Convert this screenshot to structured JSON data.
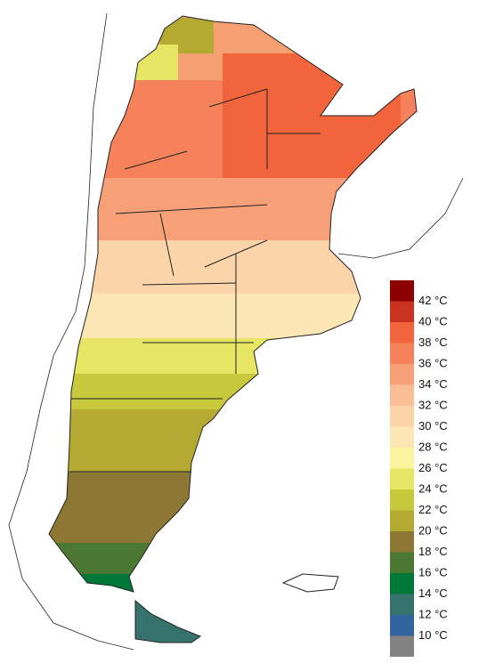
{
  "legend": {
    "colors": [
      "#8b0000",
      "#c8321e",
      "#f2643c",
      "#f5825a",
      "#f7a078",
      "#f9be96",
      "#fbd4aa",
      "#fce6b4",
      "#fbf5a0",
      "#e6e664",
      "#c8c83c",
      "#b4aa32",
      "#8c7832",
      "#4b7832",
      "#007837",
      "#37736e",
      "#3264a0",
      "#828282"
    ],
    "labels": [
      "42 °C",
      "40 °C",
      "38 °C",
      "36 °C",
      "34 °C",
      "32 °C",
      "30 °C",
      "28 °C",
      "26 °C",
      "24 °C",
      "22 °C",
      "20 °C",
      "18 °C",
      "16 °C",
      "14 °C",
      "12 °C",
      "10 °C"
    ]
  }
}
